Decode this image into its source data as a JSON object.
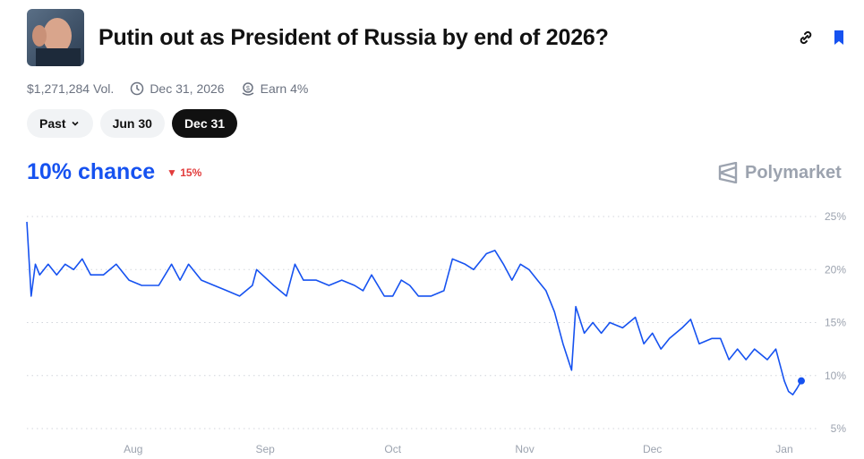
{
  "header": {
    "title": "Putin out as President of Russia by end of 2026?",
    "thumbnail": "putin-photo",
    "icons": [
      "link-icon",
      "bookmark-icon"
    ],
    "accent": "#1652f0"
  },
  "meta": {
    "volume": "$1,271,284 Vol.",
    "end_date": "Dec 31, 2026",
    "earn": "Earn 4%"
  },
  "pills": [
    {
      "label": "Past",
      "dropdown": true
    },
    {
      "label": "Jun 30"
    },
    {
      "label": "Dec 31",
      "active": true
    }
  ],
  "summary": {
    "chance": "10% chance",
    "delta": "15%",
    "delta_direction": "down",
    "delta_color": "#e23c3c"
  },
  "brand": "Polymarket",
  "chart_data": {
    "type": "line",
    "color": "#1652f0",
    "ylim": [
      5,
      25
    ],
    "yticks": [
      "25%",
      "20%",
      "15%",
      "10%",
      "5%"
    ],
    "ytick_values": [
      25,
      20,
      15,
      10,
      5
    ],
    "xticks": [
      "Aug",
      "Sep",
      "Oct",
      "Nov",
      "Dec",
      "Jan"
    ],
    "xtick_dates": [
      "2025-08-01",
      "2025-09-01",
      "2025-10-01",
      "2025-11-01",
      "2025-12-01",
      "2026-01-01"
    ],
    "grid": "horizontal dotted",
    "x": [
      "2025-07-07",
      "2025-07-08",
      "2025-07-09",
      "2025-07-10",
      "2025-07-12",
      "2025-07-14",
      "2025-07-16",
      "2025-07-18",
      "2025-07-20",
      "2025-07-22",
      "2025-07-25",
      "2025-07-28",
      "2025-07-31",
      "2025-08-03",
      "2025-08-07",
      "2025-08-10",
      "2025-08-12",
      "2025-08-14",
      "2025-08-17",
      "2025-08-20",
      "2025-08-23",
      "2025-08-26",
      "2025-08-29",
      "2025-08-30",
      "2025-09-03",
      "2025-09-06",
      "2025-09-08",
      "2025-09-10",
      "2025-09-13",
      "2025-09-16",
      "2025-09-19",
      "2025-09-22",
      "2025-09-24",
      "2025-09-26",
      "2025-09-29",
      "2025-10-01",
      "2025-10-03",
      "2025-10-05",
      "2025-10-07",
      "2025-10-10",
      "2025-10-13",
      "2025-10-15",
      "2025-10-18",
      "2025-10-20",
      "2025-10-23",
      "2025-10-25",
      "2025-10-27",
      "2025-10-29",
      "2025-10-31",
      "2025-11-02",
      "2025-11-04",
      "2025-11-06",
      "2025-11-08",
      "2025-11-10",
      "2025-11-12",
      "2025-11-13",
      "2025-11-15",
      "2025-11-17",
      "2025-11-19",
      "2025-11-21",
      "2025-11-24",
      "2025-11-27",
      "2025-11-29",
      "2025-12-01",
      "2025-12-03",
      "2025-12-05",
      "2025-12-08",
      "2025-12-10",
      "2025-12-12",
      "2025-12-15",
      "2025-12-17",
      "2025-12-19",
      "2025-12-21",
      "2025-12-23",
      "2025-12-25",
      "2025-12-28",
      "2025-12-30",
      "2026-01-01",
      "2026-01-02",
      "2026-01-03",
      "2026-01-04",
      "2026-01-05"
    ],
    "values": [
      24.5,
      17.5,
      20.5,
      19.5,
      20.5,
      19.5,
      20.5,
      20,
      21,
      19.5,
      19.5,
      20.5,
      19,
      18.5,
      18.5,
      20.5,
      19,
      20.5,
      19,
      18.5,
      18,
      17.5,
      18.5,
      20,
      18.5,
      17.5,
      20.5,
      19,
      19,
      18.5,
      19,
      18.5,
      18,
      19.5,
      17.5,
      17.5,
      19,
      18.5,
      17.5,
      17.5,
      18,
      21,
      20.5,
      20,
      21.5,
      21.8,
      20.5,
      19,
      20.5,
      20,
      19,
      18,
      16,
      13,
      10.5,
      16.5,
      14,
      15,
      14,
      15,
      14.5,
      15.5,
      13,
      14,
      12.5,
      13.5,
      14.5,
      15.3,
      13,
      13.5,
      13.5,
      11.5,
      12.5,
      11.5,
      12.5,
      11.5,
      12.5,
      9.5,
      8.5,
      8.2,
      8.8,
      9.5
    ]
  }
}
